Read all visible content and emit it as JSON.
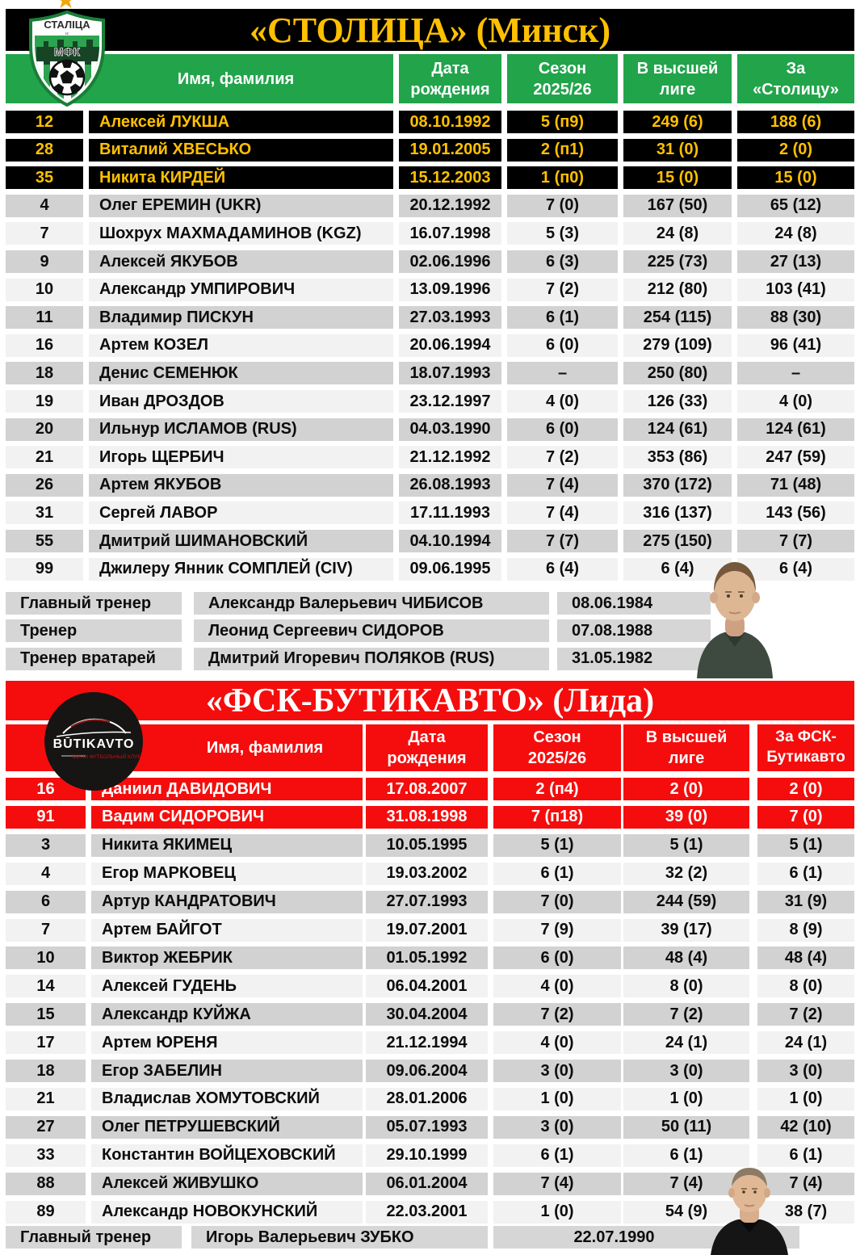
{
  "colors": {
    "table1_accent": "#22A44B",
    "table2_accent": "#F50D0D",
    "title1_color": "#FFC000",
    "gk_row1_bg": "#000000",
    "gk_row1_text": "#FFC000",
    "gk_row2_bg": "#F50D0D",
    "row_gray": "#D2D2D2",
    "row_light": "#F2F2F2",
    "coach_cell": "#D6D6D6",
    "star": "#F2A50C"
  },
  "tables": [
    {
      "title": "«СТОЛИЦА» (Минск)",
      "headers": [
        "Имя, фамилия",
        "Дата\nрождения",
        "Сезон\n2025/26",
        "В высшей\nлиге",
        "За\n«Столицу»"
      ],
      "logo": {
        "name": "СТАЛІЦА",
        "sub": "sc",
        "letters": "МФК"
      },
      "players": [
        {
          "num": "12",
          "name": "Алексей ЛУКША",
          "born": "08.10.1992",
          "season": "5 (п9)",
          "league": "249 (6)",
          "club": "188 (6)",
          "type": "gk"
        },
        {
          "num": "28",
          "name": "Виталий ХВЕСЬКО",
          "born": "19.01.2005",
          "season": "2 (п1)",
          "league": "31 (0)",
          "club": "2 (0)",
          "type": "gk"
        },
        {
          "num": "35",
          "name": "Никита КИРДЕЙ",
          "born": "15.12.2003",
          "season": "1 (п0)",
          "league": "15 (0)",
          "club": "15 (0)",
          "type": "gk"
        },
        {
          "num": "4",
          "name": "Олег ЕРЕМИН (UKR)",
          "born": "20.12.1992",
          "season": "7 (0)",
          "league": "167 (50)",
          "club": "65 (12)",
          "type": "odd"
        },
        {
          "num": "7",
          "name": "Шохрух МАХМАДАМИНОВ (KGZ)",
          "born": "16.07.1998",
          "season": "5 (3)",
          "league": "24 (8)",
          "club": "24 (8)",
          "type": "even"
        },
        {
          "num": "9",
          "name": "Алексей ЯКУБОВ",
          "born": "02.06.1996",
          "season": "6 (3)",
          "league": "225 (73)",
          "club": "27 (13)",
          "type": "odd"
        },
        {
          "num": "10",
          "name": "Александр УМПИРОВИЧ",
          "born": "13.09.1996",
          "season": "7 (2)",
          "league": "212 (80)",
          "club": "103 (41)",
          "type": "even"
        },
        {
          "num": "11",
          "name": "Владимир ПИСКУН",
          "born": "27.03.1993",
          "season": "6 (1)",
          "league": "254 (115)",
          "club": "88 (30)",
          "type": "odd"
        },
        {
          "num": "16",
          "name": "Артем КОЗЕЛ",
          "born": "20.06.1994",
          "season": "6 (0)",
          "league": "279 (109)",
          "club": "96 (41)",
          "type": "even"
        },
        {
          "num": "18",
          "name": "Денис СЕМЕНЮК",
          "born": "18.07.1993",
          "season": "–",
          "league": "250 (80)",
          "club": "–",
          "type": "odd"
        },
        {
          "num": "19",
          "name": "Иван ДРОЗДОВ",
          "born": "23.12.1997",
          "season": "4 (0)",
          "league": "126 (33)",
          "club": "4 (0)",
          "type": "even"
        },
        {
          "num": "20",
          "name": "Ильнур ИСЛАМОВ (RUS)",
          "born": "04.03.1990",
          "season": "6 (0)",
          "league": "124 (61)",
          "club": "124 (61)",
          "type": "odd"
        },
        {
          "num": "21",
          "name": "Игорь ЩЕРБИЧ",
          "born": "21.12.1992",
          "season": "7 (2)",
          "league": "353 (86)",
          "club": "247 (59)",
          "type": "even"
        },
        {
          "num": "26",
          "name": "Артем ЯКУБОВ",
          "born": "26.08.1993",
          "season": "7 (4)",
          "league": "370 (172)",
          "club": "71 (48)",
          "type": "odd"
        },
        {
          "num": "31",
          "name": "Сергей ЛАВОР",
          "born": "17.11.1993",
          "season": "7 (4)",
          "league": "316 (137)",
          "club": "143 (56)",
          "type": "even"
        },
        {
          "num": "55",
          "name": "Дмитрий ШИМАНОВСКИЙ",
          "born": "04.10.1994",
          "season": "7 (7)",
          "league": "275 (150)",
          "club": "7 (7)",
          "type": "odd"
        },
        {
          "num": "99",
          "name": "Джилеру Янник СОМПЛЕЙ (CIV)",
          "born": "09.06.1995",
          "season": "6 (4)",
          "league": "6 (4)",
          "club": "6 (4)",
          "type": "even"
        }
      ],
      "coaches": [
        {
          "role": "Главный тренер",
          "name": "Александр Валерьевич ЧИБИСОВ",
          "born": "08.06.1984"
        },
        {
          "role": "Тренер",
          "name": "Леонид Сергеевич СИДОРОВ",
          "born": "07.08.1988"
        },
        {
          "role": "Тренер вратарей",
          "name": "Дмитрий Игоревич ПОЛЯКОВ (RUS)",
          "born": "31.05.1982"
        }
      ]
    },
    {
      "title": "«ФСК-БУТИКАВТО» (Лида)",
      "headers": [
        "Имя, фамилия",
        "Дата\nрождения",
        "Сезон\n2025/26",
        "В высшей\nлиге",
        "За ФСК-\nБутикавто"
      ],
      "logo": {
        "brand": "BŪTIKAVTO",
        "tagline": "МИНИ ФУТБОЛЬНЫЙ КЛУБ"
      },
      "players": [
        {
          "num": "16",
          "name": "Даниил ДАВИДОВИЧ",
          "born": "17.08.2007",
          "season": "2 (п4)",
          "league": "2 (0)",
          "club": "2 (0)",
          "type": "gk"
        },
        {
          "num": "91",
          "name": "Вадим СИДОРОВИЧ",
          "born": "31.08.1998",
          "season": "7 (п18)",
          "league": "39 (0)",
          "club": "7 (0)",
          "type": "gk"
        },
        {
          "num": "3",
          "name": "Никита ЯКИМЕЦ",
          "born": "10.05.1995",
          "season": "5 (1)",
          "league": "5 (1)",
          "club": "5 (1)",
          "type": "odd"
        },
        {
          "num": "4",
          "name": "Егор МАРКОВЕЦ",
          "born": "19.03.2002",
          "season": "6 (1)",
          "league": "32 (2)",
          "club": "6 (1)",
          "type": "even"
        },
        {
          "num": "6",
          "name": "Артур КАНДРАТОВИЧ",
          "born": "27.07.1993",
          "season": "7 (0)",
          "league": "244 (59)",
          "club": "31 (9)",
          "type": "odd"
        },
        {
          "num": "7",
          "name": "Артем БАЙГОТ",
          "born": "19.07.2001",
          "season": "7 (9)",
          "league": "39 (17)",
          "club": "8 (9)",
          "type": "even"
        },
        {
          "num": "10",
          "name": "Виктор ЖЕБРИК",
          "born": "01.05.1992",
          "season": "6 (0)",
          "league": "48 (4)",
          "club": "48 (4)",
          "type": "odd"
        },
        {
          "num": "14",
          "name": "Алексей ГУДЕНЬ",
          "born": "06.04.2001",
          "season": "4 (0)",
          "league": "8 (0)",
          "club": "8 (0)",
          "type": "even"
        },
        {
          "num": "15",
          "name": "Александр КУЙЖА",
          "born": "30.04.2004",
          "season": "7 (2)",
          "league": "7 (2)",
          "club": "7 (2)",
          "type": "odd"
        },
        {
          "num": "17",
          "name": "Артем ЮРЕНЯ",
          "born": "21.12.1994",
          "season": "4 (0)",
          "league": "24 (1)",
          "club": "24 (1)",
          "type": "even"
        },
        {
          "num": "18",
          "name": "Егор ЗАБЕЛИН",
          "born": "09.06.2004",
          "season": "3 (0)",
          "league": "3 (0)",
          "club": "3 (0)",
          "type": "odd"
        },
        {
          "num": "21",
          "name": "Владислав ХОМУТОВСКИЙ",
          "born": "28.01.2006",
          "season": "1 (0)",
          "league": "1 (0)",
          "club": "1 (0)",
          "type": "even"
        },
        {
          "num": "27",
          "name": "Олег ПЕТРУШЕВСКИЙ",
          "born": "05.07.1993",
          "season": "3 (0)",
          "league": "50 (11)",
          "club": "42 (10)",
          "type": "odd"
        },
        {
          "num": "33",
          "name": "Константин ВОЙЦЕХОВСКИЙ",
          "born": "29.10.1999",
          "season": "6 (1)",
          "league": "6 (1)",
          "club": "6 (1)",
          "type": "even"
        },
        {
          "num": "88",
          "name": "Алексей ЖИВУШКО",
          "born": "06.01.2004",
          "season": "7 (4)",
          "league": "7 (4)",
          "club": "7 (4)",
          "type": "odd"
        },
        {
          "num": "89",
          "name": "Александр НОВОКУНСКИЙ",
          "born": "22.03.2001",
          "season": "1 (0)",
          "league": "54 (9)",
          "club": "38 (7)",
          "type": "even"
        }
      ],
      "coaches": [
        {
          "role": "Главный тренер",
          "name": "Игорь Валерьевич ЗУБКО",
          "born": "22.07.1990"
        }
      ]
    }
  ]
}
